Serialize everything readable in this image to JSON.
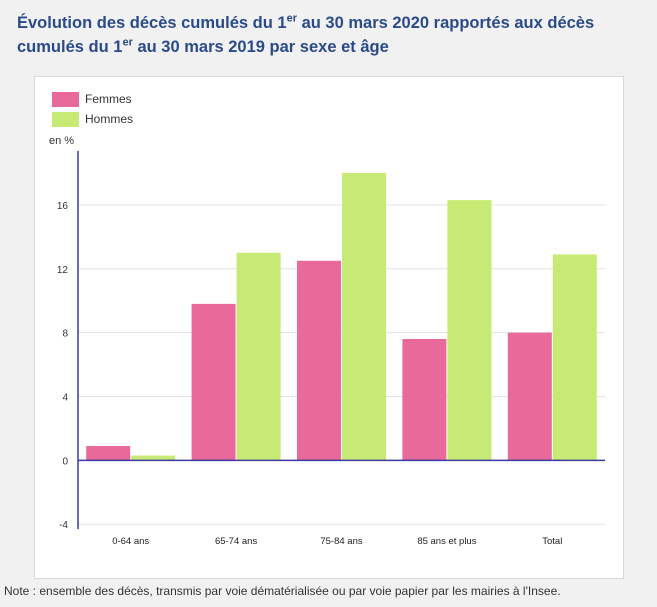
{
  "title": {
    "part1": "Évolution des décès cumulés du 1",
    "sup1": "er",
    "part2": " au 30 mars 2020 rapportés aux décès cumulés du 1",
    "sup2": "er",
    "part3": " au 30 mars 2019 par sexe et âge"
  },
  "note": "Note : ensemble des décès, transmis par voie dématérialisée ou par voie papier par les mairies à l'Insee.",
  "colors": {
    "femmes": "#e8699a",
    "hommes": "#c7ea74",
    "axis": "#3a3aa0",
    "grid": "#e3e3e3"
  },
  "chart_data": {
    "type": "bar",
    "categories": [
      "0-64 ans",
      "65-74 ans",
      "75-84 ans",
      "85 ans et plus",
      "Total"
    ],
    "series": [
      {
        "name": "Femmes",
        "values": [
          0.9,
          9.8,
          12.5,
          7.6,
          8.0
        ]
      },
      {
        "name": "Hommes",
        "values": [
          0.3,
          13.0,
          18.0,
          16.3,
          12.9
        ]
      }
    ],
    "ylabel": "en %",
    "ylim": [
      -4.3,
      19
    ],
    "yticks": [
      -4,
      0,
      4,
      8,
      12,
      16
    ],
    "grid": true,
    "legend": "top-left"
  }
}
